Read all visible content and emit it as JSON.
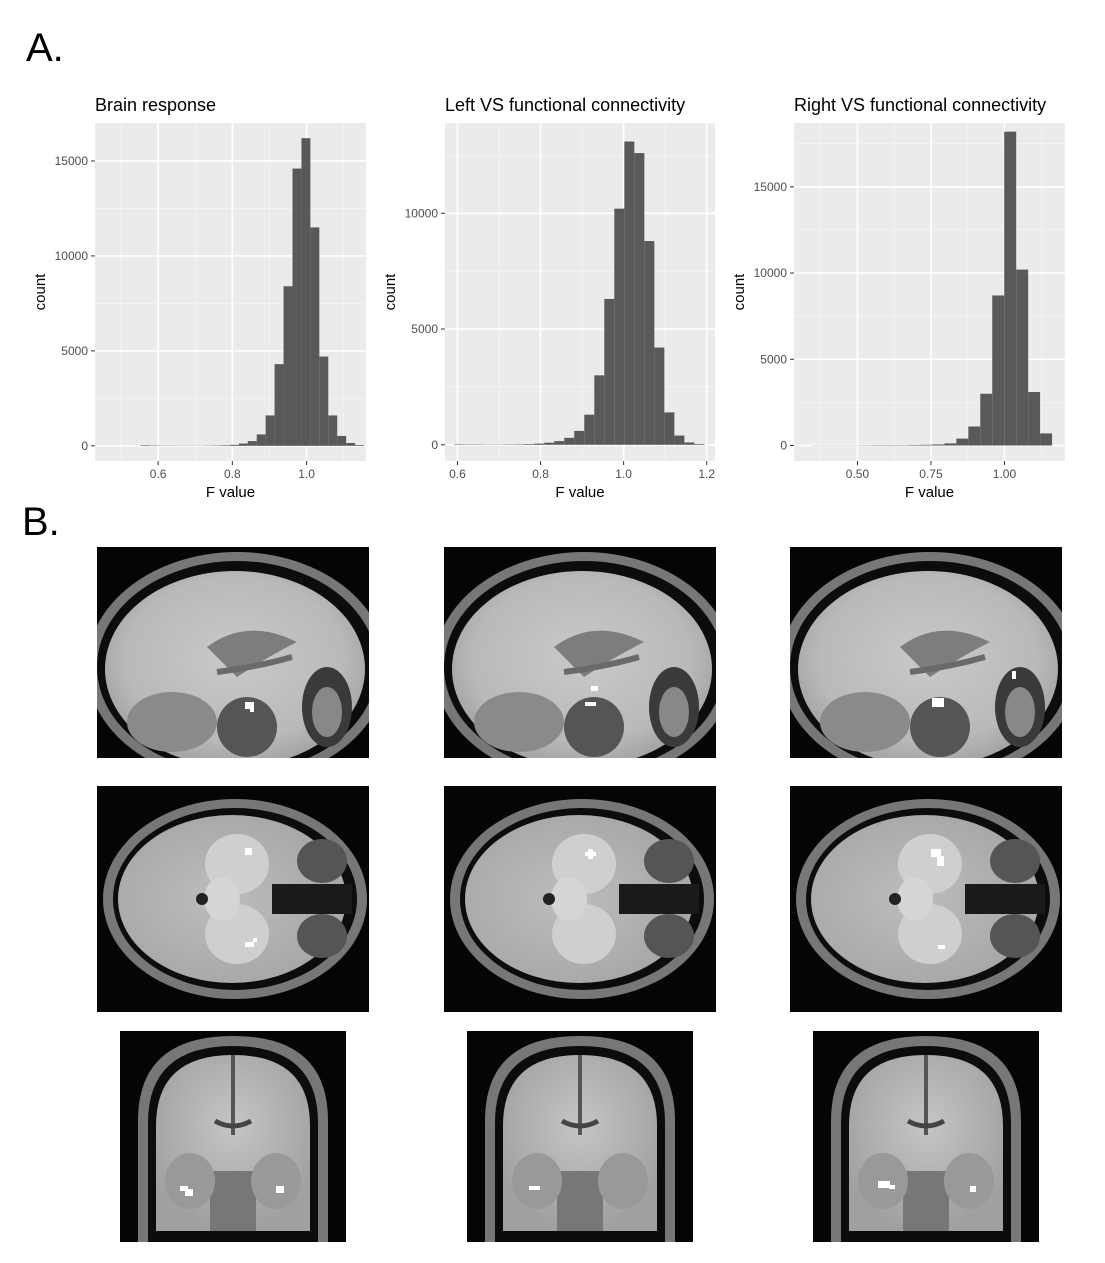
{
  "panels": {
    "a": "A.",
    "b": "B."
  },
  "chart_data": [
    {
      "type": "bar",
      "title": "Brain response",
      "xlabel": "F value",
      "ylabel": "count",
      "xlim": [
        0.43,
        1.16
      ],
      "ylim": [
        -800,
        17000
      ],
      "xticks": [
        0.6,
        0.8,
        1.0
      ],
      "xtick_labels": [
        "0.6",
        "0.8",
        "1.0"
      ],
      "yticks": [
        0,
        5000,
        10000,
        15000
      ],
      "ytick_labels": [
        "0",
        "5000",
        "10000",
        "15000"
      ],
      "grid": true,
      "bin_width": 0.0241,
      "bin_starts": [
        0.5523,
        0.5764,
        0.6005,
        0.6246,
        0.6487,
        0.6728,
        0.6969,
        0.721,
        0.7451,
        0.7692,
        0.7933,
        0.8174,
        0.8415,
        0.8656,
        0.8897,
        0.9138,
        0.9379,
        0.962,
        0.9861,
        1.0102,
        1.0343,
        1.0584,
        1.0825,
        1.1066,
        1.1307
      ],
      "values": [
        30,
        20,
        15,
        15,
        10,
        10,
        10,
        15,
        20,
        30,
        50,
        120,
        250,
        600,
        1600,
        4300,
        8400,
        14600,
        16200,
        11500,
        4700,
        1600,
        520,
        150,
        40
      ]
    },
    {
      "type": "bar",
      "title": "Left VS functional connectivity",
      "xlabel": "F value",
      "ylabel": "count",
      "xlim": [
        0.57,
        1.22
      ],
      "ylim": [
        -700,
        13900
      ],
      "xticks": [
        0.6,
        0.8,
        1.0,
        1.2
      ],
      "xtick_labels": [
        "0.6",
        "0.8",
        "1.0",
        "1.2"
      ],
      "yticks": [
        0,
        5000,
        10000
      ],
      "ytick_labels": [
        "0",
        "5000",
        "10000"
      ],
      "grid": true,
      "bin_width": 0.0241,
      "bin_starts": [
        0.592,
        0.6161,
        0.6402,
        0.6643,
        0.6884,
        0.7125,
        0.7366,
        0.7607,
        0.7848,
        0.8089,
        0.833,
        0.8571,
        0.8812,
        0.9053,
        0.9294,
        0.9535,
        0.9776,
        1.0017,
        1.0258,
        1.0499,
        1.074,
        1.0981,
        1.1222,
        1.1463,
        1.1704
      ],
      "values": [
        20,
        15,
        15,
        10,
        10,
        15,
        20,
        30,
        50,
        90,
        160,
        300,
        600,
        1300,
        3000,
        6300,
        10200,
        13100,
        12600,
        8800,
        4200,
        1400,
        400,
        100,
        30
      ]
    },
    {
      "type": "bar",
      "title": "Right VS functional connectivity",
      "xlabel": "F value",
      "ylabel": "count",
      "xlim": [
        0.284,
        1.206
      ],
      "ylim": [
        -900,
        18700
      ],
      "xticks": [
        0.5,
        0.75,
        1.0
      ],
      "xtick_labels": [
        "0.50",
        "0.75",
        "1.00"
      ],
      "yticks": [
        0,
        5000,
        10000,
        15000
      ],
      "ytick_labels": [
        "0",
        "5000",
        "10000",
        "15000"
      ],
      "grid": true,
      "bin_width": 0.0407,
      "bin_starts": [
        0.348,
        0.3887,
        0.4294,
        0.4701,
        0.5108,
        0.5515,
        0.5922,
        0.6329,
        0.6736,
        0.7143,
        0.755,
        0.7957,
        0.8364,
        0.8771,
        0.9178,
        0.9585,
        0.9992,
        1.0399,
        1.0806,
        1.1213
      ],
      "values": [
        10,
        10,
        10,
        10,
        15,
        20,
        20,
        20,
        30,
        40,
        60,
        120,
        400,
        1100,
        3000,
        8700,
        18200,
        10200,
        3100,
        700
      ]
    }
  ],
  "brain_images": [
    {
      "view": "sagittal",
      "column": "brain-response"
    },
    {
      "view": "sagittal",
      "column": "left-vs"
    },
    {
      "view": "sagittal",
      "column": "right-vs"
    },
    {
      "view": "axial",
      "column": "brain-response"
    },
    {
      "view": "axial",
      "column": "left-vs"
    },
    {
      "view": "axial",
      "column": "right-vs"
    },
    {
      "view": "coronal",
      "column": "brain-response"
    },
    {
      "view": "coronal",
      "column": "left-vs"
    },
    {
      "view": "coronal",
      "column": "right-vs"
    }
  ]
}
